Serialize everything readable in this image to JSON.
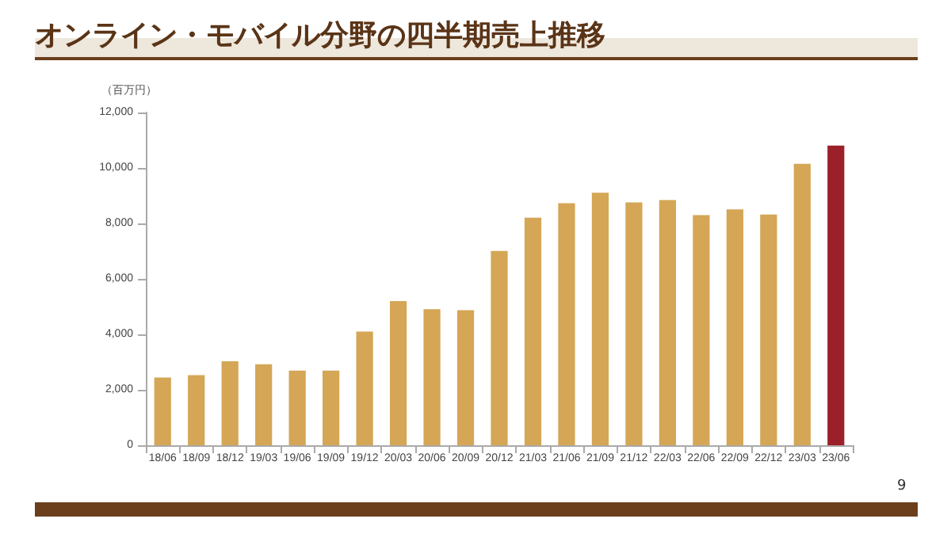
{
  "chart_data": {
    "type": "bar",
    "title": "オンライン・モバイル分野の四半期売上推移",
    "ylabel": "（百万円）",
    "categories": [
      "18/06",
      "18/09",
      "18/12",
      "19/03",
      "19/06",
      "19/09",
      "19/12",
      "20/03",
      "20/06",
      "20/09",
      "20/12",
      "21/03",
      "21/06",
      "21/09",
      "21/12",
      "22/03",
      "22/06",
      "22/09",
      "22/12",
      "23/03",
      "23/06"
    ],
    "values": [
      2440,
      2530,
      3030,
      2920,
      2690,
      2690,
      4100,
      5200,
      4910,
      4870,
      7010,
      8210,
      8730,
      9110,
      8760,
      8840,
      8300,
      8510,
      8320,
      10150,
      10810
    ],
    "colors": [
      "#d4a656",
      "#d4a656",
      "#d4a656",
      "#d4a656",
      "#d4a656",
      "#d4a656",
      "#d4a656",
      "#d4a656",
      "#d4a656",
      "#d4a656",
      "#d4a656",
      "#d4a656",
      "#d4a656",
      "#d4a656",
      "#d4a656",
      "#d4a656",
      "#d4a656",
      "#d4a656",
      "#d4a656",
      "#d4a656",
      "#9b2029"
    ],
    "ylim": [
      0,
      12000
    ],
    "yticks": [
      0,
      {
        "value": 2000,
        "label": "2,000"
      },
      {
        "value": 4000,
        "label": "4,000"
      },
      {
        "value": 6000,
        "label": "6,000"
      },
      {
        "value": 8000,
        "label": "8,000"
      },
      {
        "value": 10000,
        "label": "10,000"
      },
      {
        "value": 12000,
        "label": "12,000"
      }
    ],
    "grid": false,
    "annotations": [
      "9"
    ]
  }
}
